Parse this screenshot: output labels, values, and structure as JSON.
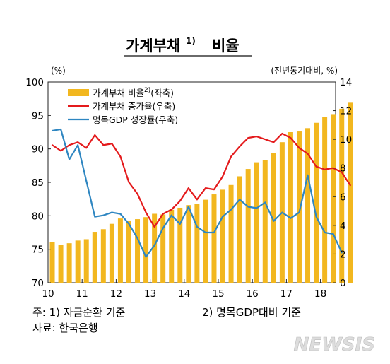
{
  "chart_data": {
    "type": "bar+line",
    "title": "가계부채",
    "title_sup": "1)",
    "title_suffix": "비율",
    "left_axis": {
      "unit": "(%)",
      "range": [
        70,
        100
      ],
      "ticks": [
        70,
        75,
        80,
        85,
        90,
        95,
        100
      ]
    },
    "right_axis": {
      "unit": "(전년동기대비, %)",
      "range": [
        0,
        14
      ],
      "ticks": [
        0,
        2,
        4,
        6,
        8,
        10,
        12,
        14
      ]
    },
    "x_labels": [
      "10",
      "11",
      "12",
      "13",
      "14",
      "15",
      "16",
      "17",
      "18"
    ],
    "x_start": 2010,
    "quarters_per_year": 4,
    "legend_position": "top-left",
    "series": [
      {
        "name": "가계부채 비율",
        "sup": "2)",
        "axis_note": "(좌축)",
        "type": "bar",
        "axis": "left",
        "color": "#F2B71F",
        "values": [
          76.1,
          75.7,
          75.9,
          76.3,
          76.5,
          77.6,
          78.0,
          78.8,
          79.6,
          79.3,
          79.5,
          79.8,
          80.3,
          80.2,
          80.9,
          81.2,
          81.6,
          81.8,
          82.4,
          83.2,
          83.9,
          84.6,
          85.9,
          87.0,
          88.0,
          88.3,
          89.4,
          91.0,
          92.5,
          92.6,
          93.1,
          93.9,
          94.8,
          95.2,
          96.0,
          96.9
        ]
      },
      {
        "name": "가계부채 증가율",
        "axis_note": "(우축)",
        "type": "line",
        "axis": "right",
        "color": "#E41A1C",
        "values": [
          9.6,
          9.2,
          9.6,
          9.8,
          9.4,
          10.3,
          9.6,
          9.7,
          8.8,
          7.0,
          6.2,
          4.9,
          3.9,
          4.8,
          5.1,
          5.7,
          6.6,
          5.8,
          6.6,
          6.5,
          7.4,
          8.8,
          9.5,
          10.1,
          10.2,
          10.0,
          9.8,
          10.4,
          10.1,
          9.4,
          9.0,
          8.1,
          7.9,
          8.0,
          7.7,
          6.8
        ]
      },
      {
        "name": "명목GDP 성장률",
        "axis_note": "(우축)",
        "type": "line",
        "axis": "right",
        "color": "#2E86C1",
        "values": [
          10.6,
          10.7,
          8.6,
          9.6,
          7.1,
          4.6,
          4.7,
          4.9,
          4.8,
          4.1,
          3.1,
          1.8,
          2.6,
          3.8,
          4.7,
          4.1,
          5.3,
          3.9,
          3.5,
          3.5,
          4.6,
          5.1,
          5.8,
          5.3,
          5.2,
          5.6,
          4.3,
          4.9,
          4.5,
          4.9,
          7.5,
          4.6,
          3.5,
          3.4,
          2.1
        ]
      }
    ]
  },
  "notes": {
    "line1_a": "주: 1) 자금순환 기준",
    "line1_b": "2) 명목GDP대비 기준",
    "line2": "자료: 한국은행"
  },
  "watermark": "NEWSIS"
}
